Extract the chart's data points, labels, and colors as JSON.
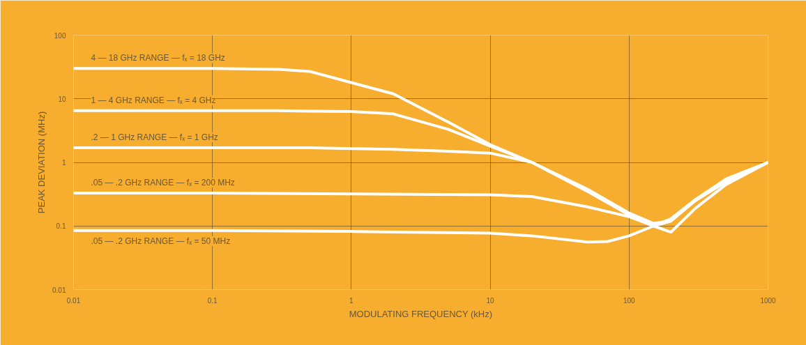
{
  "chart_data": {
    "type": "line",
    "xlabel": "MODULATING FREQUENCY (kHz)",
    "ylabel": "PEAK DEVIATION (MHz)",
    "log": "xy",
    "grid": true,
    "marker": "none",
    "line_style": "solid",
    "xlim": [
      0.01,
      1000
    ],
    "ylim": [
      0.01,
      100
    ],
    "xticks": [
      0.01,
      0.1,
      1,
      10,
      100,
      1000
    ],
    "yticks": [
      0.01,
      0.1,
      1,
      10,
      100
    ],
    "series": [
      {
        "name": "4 — 18 GHz RANGE — fₓ = 18 GHz",
        "color": "#ffffff",
        "x": [
          0.01,
          0.1,
          0.3,
          0.5,
          1,
          2,
          5,
          10,
          20,
          50,
          100,
          150,
          200,
          300,
          500,
          1000
        ],
        "values": [
          30,
          30,
          29,
          27,
          18,
          12,
          4.3,
          1.9,
          1.0,
          0.35,
          0.15,
          0.1,
          0.08,
          0.19,
          0.45,
          1.0
        ]
      },
      {
        "name": "1 — 4 GHz RANGE — fₓ = 4 GHz",
        "color": "#ffffff",
        "x": [
          0.01,
          0.1,
          0.3,
          0.5,
          1,
          2,
          5,
          10,
          20,
          50,
          100,
          150,
          200,
          300,
          500,
          1000
        ],
        "values": [
          6.5,
          6.5,
          6.5,
          6.4,
          6.3,
          5.8,
          3.3,
          1.8,
          1.0,
          0.38,
          0.16,
          0.11,
          0.12,
          0.26,
          0.55,
          1.0
        ]
      },
      {
        "name": ".2 — 1 GHz RANGE — fₓ = 1 GHz",
        "color": "#ffffff",
        "x": [
          0.01,
          0.1,
          0.3,
          0.5,
          1,
          2,
          5,
          10,
          20,
          50,
          100,
          150,
          200,
          300,
          500,
          1000
        ],
        "values": [
          1.7,
          1.7,
          1.7,
          1.7,
          1.65,
          1.6,
          1.5,
          1.4,
          1.0,
          0.36,
          0.15,
          0.1,
          0.12,
          0.26,
          0.5,
          1.0
        ]
      },
      {
        "name": ".05 — .2 GHz RANGE — fₓ = 200 MHz",
        "color": "#ffffff",
        "x": [
          0.01,
          0.1,
          1,
          10,
          20,
          50,
          100,
          150,
          200,
          300,
          500,
          1000
        ],
        "values": [
          0.33,
          0.33,
          0.32,
          0.31,
          0.29,
          0.2,
          0.14,
          0.1,
          0.12,
          0.25,
          0.5,
          1.0
        ]
      },
      {
        "name": ".05 — .2 GHz RANGE — fₓ = 50 MHz",
        "color": "#ffffff",
        "x": [
          0.01,
          0.1,
          1,
          10,
          20,
          50,
          70,
          100,
          150,
          200,
          300,
          500,
          1000
        ],
        "values": [
          0.085,
          0.085,
          0.082,
          0.077,
          0.07,
          0.056,
          0.057,
          0.07,
          0.1,
          0.13,
          0.26,
          0.5,
          1.0
        ]
      }
    ]
  }
}
